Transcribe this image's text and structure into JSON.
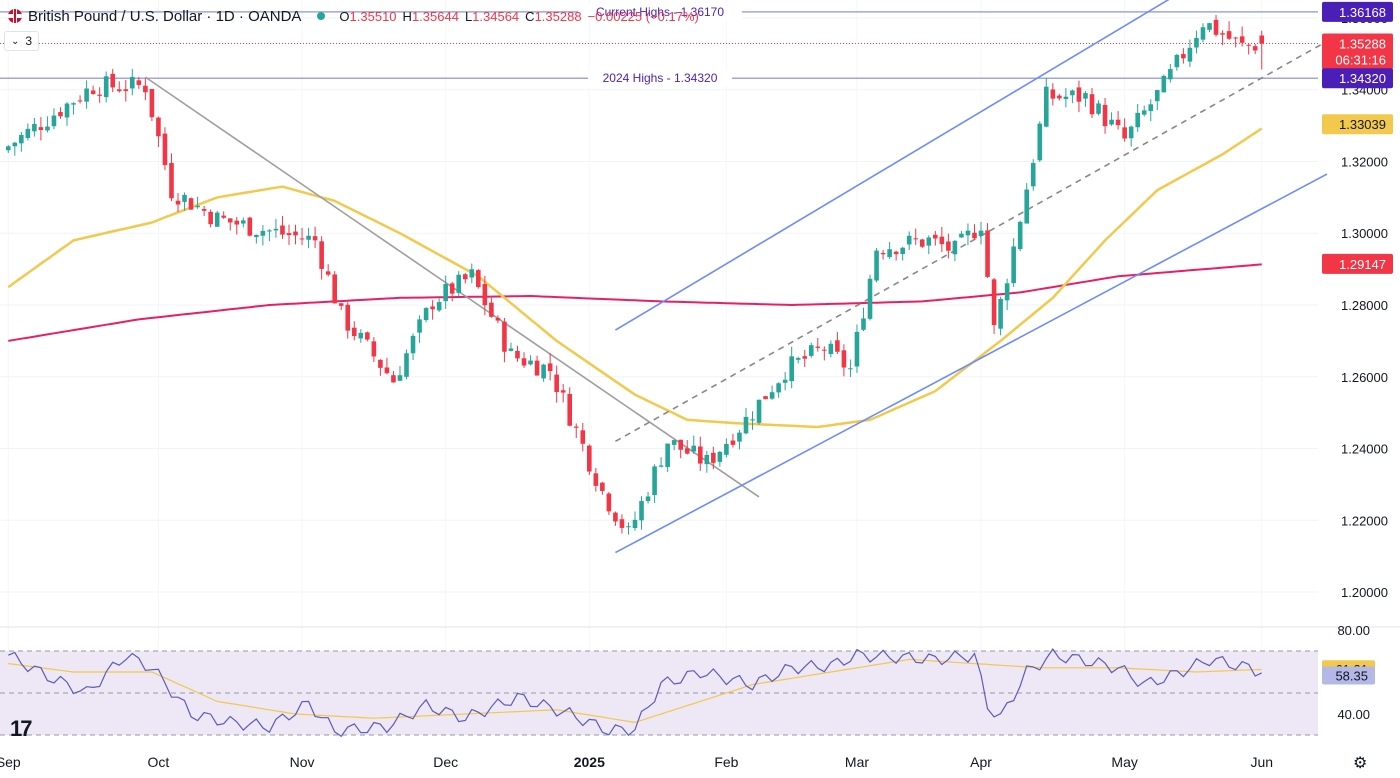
{
  "header": {
    "title": "British Pound / U.S. Dollar · 1D · OANDA",
    "open_label": "O",
    "open": "1.35510",
    "high_label": "H",
    "high": "1.35644",
    "low_label": "L",
    "low": "1.34564",
    "close_label": "C",
    "close": "1.35288",
    "change": "−0.00225 (−0.17%)"
  },
  "indicator_count": "3",
  "icons": {
    "flag": "gbp-usd-flag-icon",
    "status": "market-open-dot-icon",
    "chevron": "chevron-down-icon",
    "logo": "tradingview-logo-icon",
    "settings": "gear-icon"
  },
  "colors": {
    "up": "#26a69a",
    "down": "#f23645",
    "ma50": "#f2c94c",
    "ma200": "#e91e63",
    "channel": "#6b8cff",
    "hline": "#9fa5e6",
    "label_purple": "#4a1fb8",
    "rsi_band": "#ede7f6",
    "rsi_line": "#5c5cb8"
  },
  "chart_data": {
    "type": "candlestick",
    "y_axis": {
      "range": [
        1.195,
        1.365
      ],
      "ticks": [
        "1.20000",
        "1.22000",
        "1.24000",
        "1.26000",
        "1.28000",
        "1.30000",
        "1.32000",
        "1.34000",
        "1.36000"
      ],
      "tick_values": [
        1.2,
        1.22,
        1.24,
        1.26,
        1.28,
        1.3,
        1.32,
        1.34,
        1.36
      ]
    },
    "x_axis": {
      "labels": [
        "Sep",
        "Oct",
        "Nov",
        "Dec",
        "2025",
        "Feb",
        "Mar",
        "Apr",
        "May",
        "Jun"
      ],
      "label_bars": [
        0,
        23,
        45,
        67,
        89,
        110,
        130,
        149,
        171,
        192
      ]
    },
    "bars": 193,
    "key_points": [
      [
        0,
        1.323
      ],
      [
        14,
        1.341
      ],
      [
        22,
        1.341
      ],
      [
        26,
        1.312
      ],
      [
        33,
        1.304
      ],
      [
        40,
        1.301
      ],
      [
        48,
        1.298
      ],
      [
        52,
        1.277
      ],
      [
        60,
        1.259
      ],
      [
        66,
        1.281
      ],
      [
        72,
        1.288
      ],
      [
        78,
        1.266
      ],
      [
        84,
        1.262
      ],
      [
        92,
        1.228
      ],
      [
        96,
        1.216
      ],
      [
        102,
        1.242
      ],
      [
        108,
        1.236
      ],
      [
        114,
        1.248
      ],
      [
        120,
        1.262
      ],
      [
        126,
        1.268
      ],
      [
        130,
        1.262
      ],
      [
        134,
        1.296
      ],
      [
        142,
        1.298
      ],
      [
        146,
        1.295
      ],
      [
        150,
        1.303
      ],
      [
        152,
        1.273
      ],
      [
        155,
        1.296
      ],
      [
        160,
        1.338
      ],
      [
        166,
        1.338
      ],
      [
        172,
        1.326
      ],
      [
        178,
        1.341
      ],
      [
        184,
        1.359
      ],
      [
        190,
        1.352
      ],
      [
        193,
        1.3529
      ]
    ],
    "ma50_points": [
      [
        0,
        1.285
      ],
      [
        10,
        1.298
      ],
      [
        22,
        1.303
      ],
      [
        32,
        1.31
      ],
      [
        42,
        1.313
      ],
      [
        50,
        1.309
      ],
      [
        60,
        1.3
      ],
      [
        72,
        1.288
      ],
      [
        84,
        1.27
      ],
      [
        96,
        1.255
      ],
      [
        104,
        1.248
      ],
      [
        112,
        1.247
      ],
      [
        124,
        1.246
      ],
      [
        132,
        1.248
      ],
      [
        142,
        1.256
      ],
      [
        152,
        1.27
      ],
      [
        160,
        1.282
      ],
      [
        168,
        1.298
      ],
      [
        176,
        1.312
      ],
      [
        186,
        1.322
      ],
      [
        193,
        1.33039
      ]
    ],
    "ma200_points": [
      [
        0,
        1.27
      ],
      [
        20,
        1.276
      ],
      [
        40,
        1.28
      ],
      [
        60,
        1.282
      ],
      [
        80,
        1.2825
      ],
      [
        100,
        1.281
      ],
      [
        120,
        1.28
      ],
      [
        140,
        1.281
      ],
      [
        155,
        1.2835
      ],
      [
        170,
        1.288
      ],
      [
        193,
        1.29147
      ]
    ],
    "channel_lines": [
      {
        "from": [
          93,
          1.211
        ],
        "to": [
          202,
          1.3165
        ]
      },
      {
        "from": [
          93,
          1.273
        ],
        "to": [
          202,
          1.3915
        ]
      },
      {
        "from": [
          93,
          1.242
        ],
        "to": [
          202,
          1.3535
        ],
        "dashed": true
      }
    ],
    "downtrend_line": {
      "from": [
        21,
        1.3435
      ],
      "to": [
        115,
        1.2265
      ]
    },
    "horizontal_lines": [
      {
        "price": 1.3617,
        "label": "Current Highs - 1.36170"
      },
      {
        "price": 1.3432,
        "label": "2024 Highs - 1.34320"
      }
    ],
    "price_labels": [
      {
        "value": "1.36168",
        "price": 1.36168,
        "style": "purple"
      },
      {
        "value": "1.35288",
        "sub": "06:31:16",
        "price": 1.35288,
        "style": "red"
      },
      {
        "value": "1.34320",
        "price": 1.3432,
        "style": "purple"
      },
      {
        "value": "1.33039",
        "price": 1.33039,
        "style": "yellow"
      },
      {
        "value": "1.29147",
        "price": 1.29147,
        "style": "red"
      }
    ],
    "rsi": {
      "range": [
        30,
        80
      ],
      "ticks": [
        "80.00",
        "40.00"
      ],
      "tick_values": [
        80,
        40
      ],
      "levels": [
        70,
        50,
        30
      ],
      "points": [
        [
          0,
          68
        ],
        [
          6,
          58
        ],
        [
          12,
          50
        ],
        [
          18,
          68
        ],
        [
          22,
          62
        ],
        [
          28,
          40
        ],
        [
          34,
          36
        ],
        [
          40,
          34
        ],
        [
          46,
          45
        ],
        [
          50,
          32
        ],
        [
          58,
          34
        ],
        [
          64,
          44
        ],
        [
          70,
          38
        ],
        [
          78,
          48
        ],
        [
          86,
          40
        ],
        [
          92,
          32
        ],
        [
          96,
          33
        ],
        [
          100,
          54
        ],
        [
          106,
          60
        ],
        [
          114,
          54
        ],
        [
          120,
          62
        ],
        [
          126,
          63
        ],
        [
          130,
          68
        ],
        [
          136,
          67
        ],
        [
          142,
          66
        ],
        [
          148,
          68
        ],
        [
          150,
          44
        ],
        [
          152,
          38
        ],
        [
          156,
          60
        ],
        [
          160,
          68
        ],
        [
          164,
          66
        ],
        [
          170,
          62
        ],
        [
          174,
          54
        ],
        [
          178,
          58
        ],
        [
          184,
          66
        ],
        [
          190,
          62
        ],
        [
          193,
          58.35
        ]
      ],
      "ma_points": [
        [
          0,
          64
        ],
        [
          10,
          60
        ],
        [
          22,
          60
        ],
        [
          32,
          46
        ],
        [
          44,
          40
        ],
        [
          56,
          38
        ],
        [
          70,
          40
        ],
        [
          84,
          42
        ],
        [
          96,
          36
        ],
        [
          104,
          44
        ],
        [
          114,
          54
        ],
        [
          126,
          60
        ],
        [
          138,
          66
        ],
        [
          148,
          64
        ],
        [
          158,
          62
        ],
        [
          170,
          62
        ],
        [
          182,
          60
        ],
        [
          193,
          61.31
        ]
      ],
      "labels": [
        {
          "value": "61.31",
          "price": 61.31,
          "style": "yellow"
        },
        {
          "value": "58.35",
          "price": 58.35,
          "style": "blue"
        }
      ]
    }
  }
}
